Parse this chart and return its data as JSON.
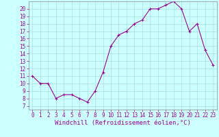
{
  "x": [
    0,
    1,
    2,
    3,
    4,
    5,
    6,
    7,
    8,
    9,
    10,
    11,
    12,
    13,
    14,
    15,
    16,
    17,
    18,
    19,
    20,
    21,
    22,
    23
  ],
  "y": [
    11,
    10,
    10,
    8,
    8.5,
    8.5,
    8,
    7.5,
    9,
    11.5,
    15,
    16.5,
    17,
    18,
    18.5,
    20,
    20,
    20.5,
    21,
    20,
    17,
    18,
    14.5,
    12.5
  ],
  "line_color": "#990099",
  "marker": "+",
  "bg_color": "#ccffff",
  "grid_color": "#aadddd",
  "xlabel": "Windchill (Refroidissement éolien,°C)",
  "ylabel": "",
  "xlim": [
    -0.5,
    23.5
  ],
  "ylim": [
    6.5,
    21.0
  ],
  "xticks": [
    0,
    1,
    2,
    3,
    4,
    5,
    6,
    7,
    8,
    9,
    10,
    11,
    12,
    13,
    14,
    15,
    16,
    17,
    18,
    19,
    20,
    21,
    22,
    23
  ],
  "yticks": [
    7,
    8,
    9,
    10,
    11,
    12,
    13,
    14,
    15,
    16,
    17,
    18,
    19,
    20
  ],
  "xlabel_color": "#990099",
  "tick_color": "#990099",
  "xlabel_fontsize": 6.5,
  "tick_fontsize": 5.5,
  "marker_size": 3,
  "line_width": 0.8,
  "spine_color": "#888888"
}
